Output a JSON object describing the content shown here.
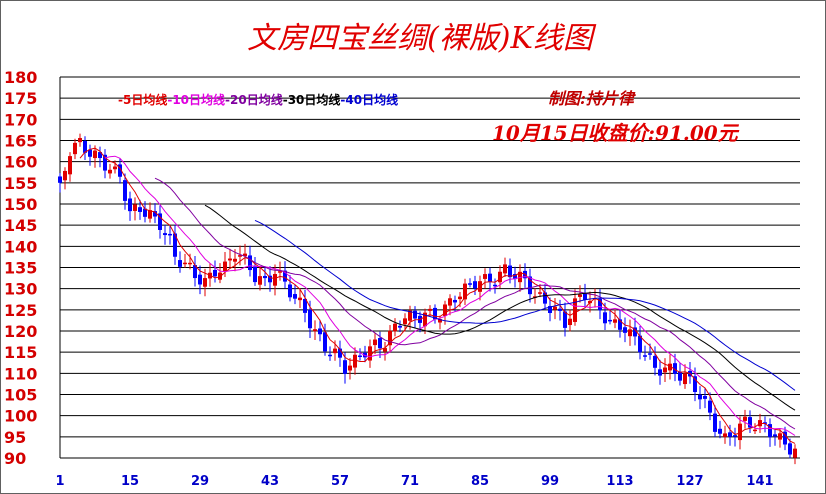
{
  "chart_data": {
    "type": "candlestick",
    "title": "文房四宝丝绸(裸版)K线图",
    "author_label": "制图:持片律",
    "close_note": "10月15日收盘价:91.00元",
    "ylim": [
      90,
      180
    ],
    "y_ticks": [
      180,
      175,
      170,
      165,
      160,
      155,
      150,
      145,
      140,
      135,
      130,
      125,
      120,
      115,
      110,
      105,
      100,
      95,
      90
    ],
    "x_ticks": [
      1,
      15,
      29,
      43,
      57,
      71,
      85,
      99,
      113,
      127,
      141
    ],
    "x_range": [
      1,
      148
    ],
    "grid": true,
    "colors": {
      "up": "#e00000",
      "down": "#0000ff",
      "grid": "#000000",
      "ma5": "#e00000",
      "ma10": "#e000e0",
      "ma20": "#8000a0",
      "ma30": "#000000",
      "ma40": "#0000d0"
    },
    "legend": [
      {
        "text": "-5日均线",
        "color": "#e00000"
      },
      {
        "text": "-10日均线",
        "color": "#e000e0"
      },
      {
        "text": "-20日均线",
        "color": "#8000a0"
      },
      {
        "text": "-30日均线",
        "color": "#000000"
      },
      {
        "text": "-40日均线",
        "color": "#0000d0"
      }
    ],
    "close_key": [
      [
        1,
        153
      ],
      [
        3,
        162
      ],
      [
        5,
        164
      ],
      [
        8,
        162
      ],
      [
        10,
        160
      ],
      [
        12,
        157
      ],
      [
        13,
        156
      ],
      [
        15,
        147
      ],
      [
        17,
        149
      ],
      [
        19,
        148
      ],
      [
        21,
        146
      ],
      [
        23,
        141
      ],
      [
        24,
        137
      ],
      [
        26,
        135
      ],
      [
        28,
        133
      ],
      [
        30,
        132
      ],
      [
        32,
        135
      ],
      [
        34,
        135
      ],
      [
        36,
        138
      ],
      [
        38,
        136
      ],
      [
        40,
        133
      ],
      [
        42,
        132
      ],
      [
        44,
        135
      ],
      [
        46,
        131
      ],
      [
        48,
        127
      ],
      [
        50,
        124
      ],
      [
        52,
        120
      ],
      [
        54,
        117
      ],
      [
        56,
        115
      ],
      [
        58,
        111
      ],
      [
        60,
        112
      ],
      [
        62,
        115
      ],
      [
        64,
        117
      ],
      [
        66,
        118
      ],
      [
        68,
        121
      ],
      [
        70,
        123
      ],
      [
        72,
        122
      ],
      [
        74,
        124
      ],
      [
        76,
        124
      ],
      [
        78,
        126
      ],
      [
        80,
        128
      ],
      [
        82,
        129
      ],
      [
        84,
        131
      ],
      [
        86,
        132
      ],
      [
        88,
        133
      ],
      [
        90,
        135
      ],
      [
        92,
        133
      ],
      [
        94,
        131
      ],
      [
        96,
        128
      ],
      [
        98,
        127
      ],
      [
        100,
        126
      ],
      [
        102,
        122
      ],
      [
        104,
        126
      ],
      [
        106,
        128
      ],
      [
        108,
        126
      ],
      [
        110,
        124
      ],
      [
        112,
        122
      ],
      [
        114,
        121
      ],
      [
        116,
        117
      ],
      [
        118,
        114
      ],
      [
        120,
        111
      ],
      [
        122,
        112
      ],
      [
        124,
        111
      ],
      [
        126,
        109
      ],
      [
        128,
        106
      ],
      [
        130,
        102
      ],
      [
        132,
        98
      ],
      [
        134,
        95
      ],
      [
        136,
        97
      ],
      [
        138,
        98
      ],
      [
        140,
        97
      ],
      [
        142,
        97
      ],
      [
        144,
        96
      ],
      [
        146,
        94
      ],
      [
        148,
        92
      ],
      [
        150,
        91
      ]
    ]
  }
}
